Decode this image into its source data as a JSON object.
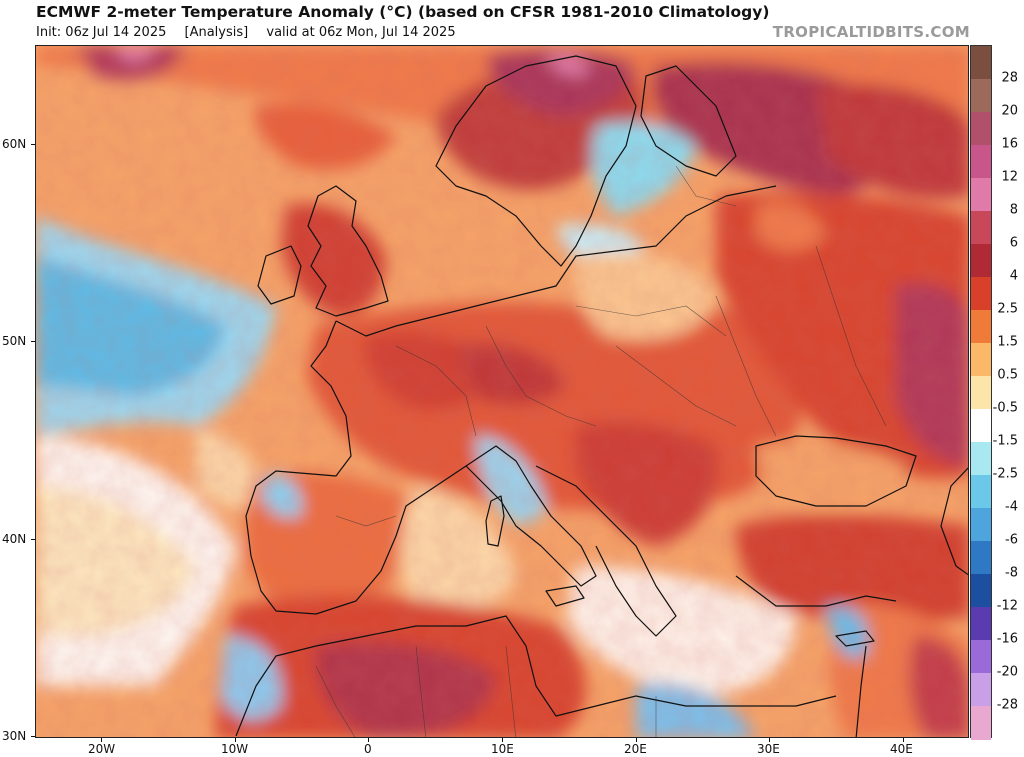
{
  "header": {
    "title": "ECMWF 2-meter Temperature Anomaly (°C) (based on CFSR 1981-2010 Climatology)",
    "init": "Init: 06z Jul 14 2025",
    "run_type": "[Analysis]",
    "valid": "valid at 06z Mon, Jul 14 2025",
    "brand": "TROPICALTIDBITS.COM"
  },
  "map": {
    "lat_labels": [
      "60N",
      "50N",
      "40N",
      "30N"
    ],
    "lon_labels": [
      "20W",
      "10W",
      "0",
      "10E",
      "20E",
      "30E",
      "40E"
    ]
  },
  "colorbar": {
    "labels": [
      "28",
      "20",
      "16",
      "12",
      "8",
      "6",
      "4",
      "2.5",
      "1.5",
      "0.5",
      "-0.5",
      "-1.5",
      "-2.5",
      "-4",
      "-6",
      "-8",
      "-12",
      "-16",
      "-20",
      "-28"
    ],
    "colors": [
      "#7a4f3f",
      "#9b6a5a",
      "#b0506a",
      "#c8568a",
      "#e07aa8",
      "#c8485a",
      "#b02a35",
      "#d8402a",
      "#f07a38",
      "#fbb868",
      "#fde4a8",
      "#ffffff",
      "#a8e8f0",
      "#6cc8e8",
      "#4ea4dc",
      "#2f78c4",
      "#1d4fa0",
      "#5a3cb0",
      "#9a6ad8",
      "#c9a0e8",
      "#e8a8d0"
    ]
  },
  "palette": {
    "ocean_warm": "#f7a868",
    "ocean_cool": "#9ad6f0",
    "land_hot": "#d84a30",
    "land_very_hot": "#b83848",
    "land_extreme": "#9c3050",
    "land_warm": "#ee7a48",
    "land_mild": "#fbc890",
    "coast": "#111111"
  }
}
